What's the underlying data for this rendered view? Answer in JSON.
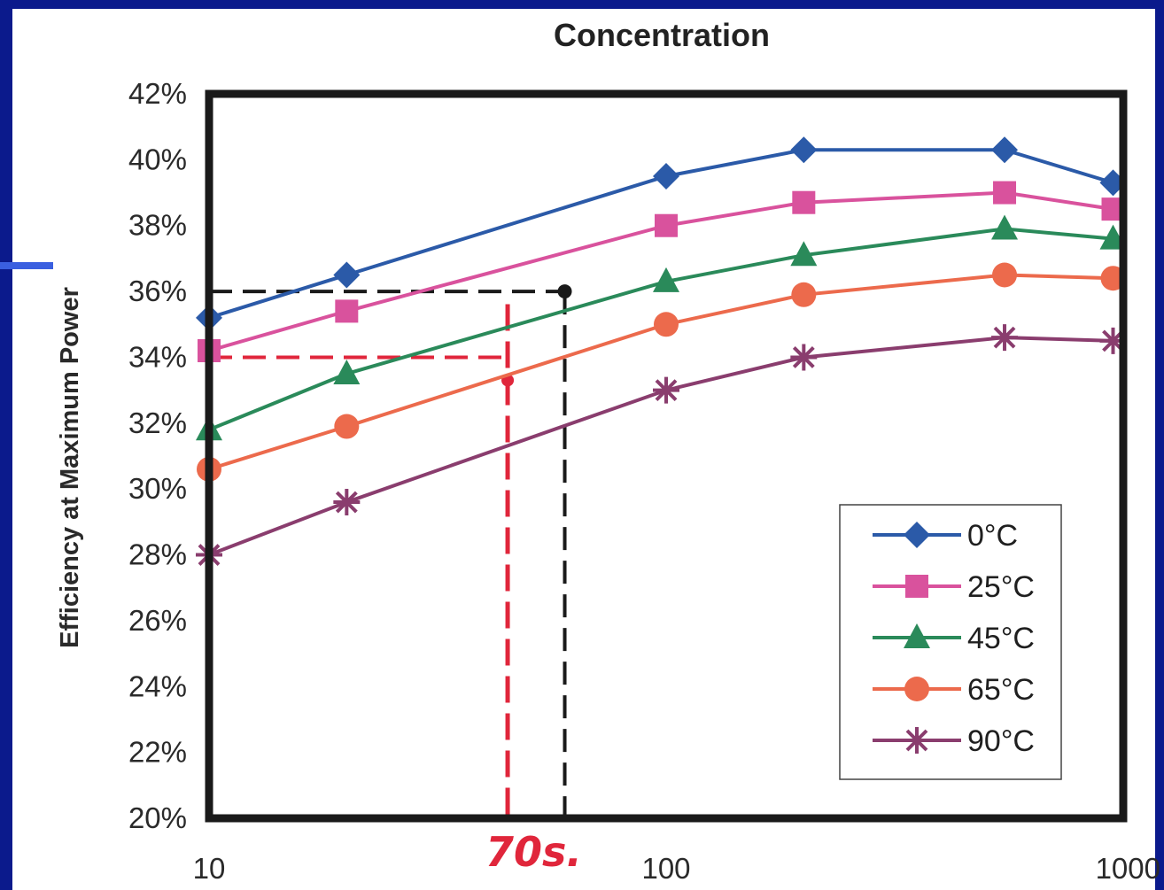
{
  "chart_data": {
    "type": "line",
    "title": "Concentration",
    "xlabel": "",
    "ylabel": "Efficiency at Maximum Power",
    "xscale": "log",
    "xlim": [
      10,
      1000
    ],
    "ylim": [
      20,
      42
    ],
    "x_ticks": [
      "10",
      "100",
      "1000"
    ],
    "y_ticks": [
      "20%",
      "22%",
      "24%",
      "26%",
      "28%",
      "30%",
      "32%",
      "34%",
      "36%",
      "38%",
      "40%",
      "42%"
    ],
    "x": [
      10,
      20,
      100,
      200,
      550,
      950
    ],
    "series": [
      {
        "name": "0°C",
        "color": "#2b5aa8",
        "marker": "diamond",
        "values": [
          35.2,
          36.5,
          39.5,
          40.3,
          40.3,
          39.3
        ]
      },
      {
        "name": "25°C",
        "color": "#d9529d",
        "marker": "square",
        "values": [
          34.2,
          35.4,
          38.0,
          38.7,
          39.0,
          38.5
        ]
      },
      {
        "name": "45°C",
        "color": "#2a8a5a",
        "marker": "triangle",
        "values": [
          31.8,
          33.5,
          36.3,
          37.1,
          37.9,
          37.6
        ]
      },
      {
        "name": "65°C",
        "color": "#ec6a4c",
        "marker": "circle",
        "values": [
          30.6,
          31.9,
          35.0,
          35.9,
          36.5,
          36.4
        ]
      },
      {
        "name": "90°C",
        "color": "#8a3d6e",
        "marker": "star",
        "values": [
          28.0,
          29.6,
          33.0,
          34.0,
          34.6,
          34.5
        ]
      }
    ],
    "legend_position": "lower-right",
    "grid": false,
    "annotations": [
      {
        "text": "70s.",
        "color": "#e0263b",
        "note": "handwritten"
      },
      {
        "guide": "black dashed lines from y=36% to x≈60",
        "y": 36,
        "x": 60
      },
      {
        "guide": "red dashed lines from y=34% to x≈45",
        "y": 34,
        "x": 45
      }
    ]
  }
}
